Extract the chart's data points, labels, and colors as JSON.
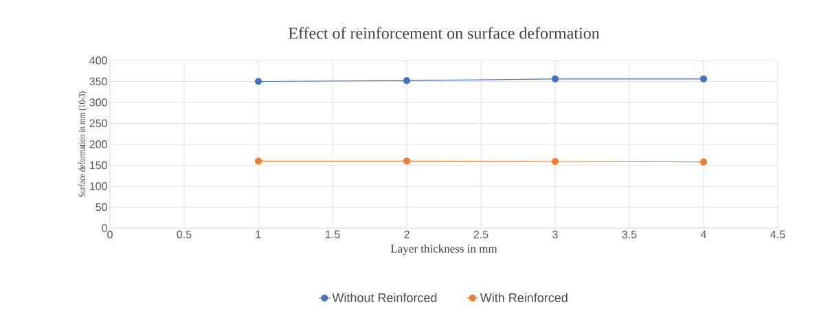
{
  "chart_data": {
    "type": "line",
    "title": "Effect  of reinforcement  on surface  deformation",
    "xlabel": "Layer thickness in mm",
    "ylabel": "Surface deformation in mm (10-3)",
    "x": [
      1,
      2,
      3,
      4
    ],
    "series": [
      {
        "name": "Without Reinforced",
        "color": "#4472c4",
        "values": [
          350,
          352,
          356,
          356
        ]
      },
      {
        "name": "With Reinforced",
        "color": "#ed7d31",
        "values": [
          160,
          160,
          159,
          158
        ]
      }
    ],
    "xlim": [
      0,
      4.5
    ],
    "xticks": [
      0,
      0.5,
      1,
      1.5,
      2,
      2.5,
      3,
      3.5,
      4,
      4.5
    ],
    "ylim": [
      0,
      400
    ],
    "yticks": [
      0,
      50,
      100,
      150,
      200,
      250,
      300,
      350,
      400
    ],
    "grid": true,
    "legend": "bottom",
    "marker": "circle",
    "line_style": "solid"
  }
}
